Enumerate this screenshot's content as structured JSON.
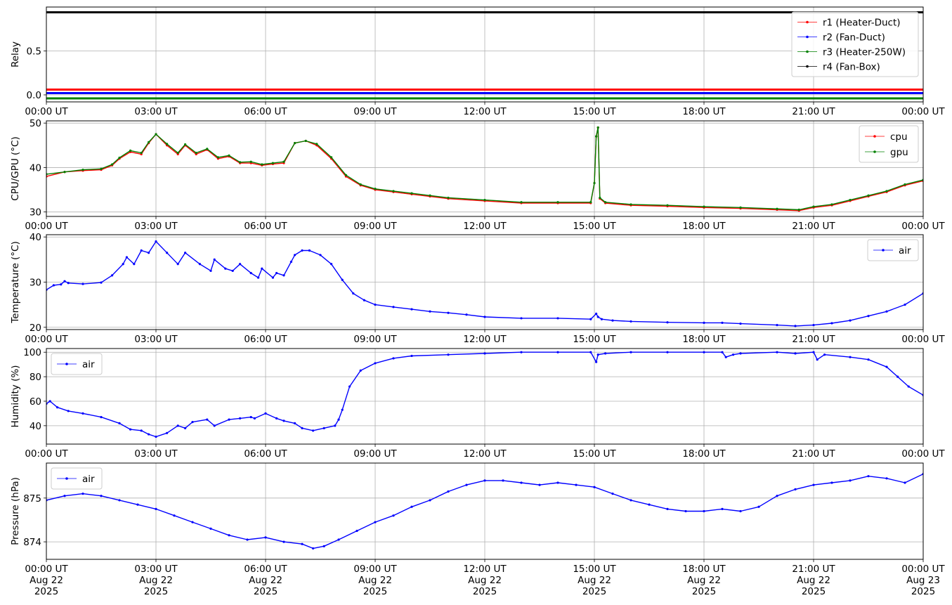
{
  "chart_data": [
    {
      "type": "line",
      "ylabel": "Relay",
      "ylim": [
        -0.08,
        1.0
      ],
      "yticks": [
        0.0,
        0.5
      ],
      "ytick_labels": [
        "0.0",
        "0.5"
      ],
      "xlim_hours": [
        0,
        24
      ],
      "xtick_labels": [
        "00:00 UT",
        "03:00 UT",
        "06:00 UT",
        "09:00 UT",
        "12:00 UT",
        "15:00 UT",
        "18:00 UT",
        "21:00 UT",
        "00:00 UT"
      ],
      "grid": true,
      "legend": "top-right",
      "series": [
        {
          "name": "r1 (Heater-Duct)",
          "color": "#ff0000",
          "x": [
            0,
            24
          ],
          "y": [
            0.06,
            0.06
          ]
        },
        {
          "name": "r2 (Fan-Duct)",
          "color": "#0000ff",
          "x": [
            0,
            24
          ],
          "y": [
            0.02,
            0.02
          ]
        },
        {
          "name": "r3 (Heater-250W)",
          "color": "#008000",
          "x": [
            0,
            24
          ],
          "y": [
            -0.04,
            -0.04
          ]
        },
        {
          "name": "r4 (Fan-Box)",
          "color": "#000000",
          "x": [
            0,
            24
          ],
          "y": [
            0.94,
            0.94
          ]
        }
      ]
    },
    {
      "type": "line",
      "ylabel": "CPU/GPU (°C)",
      "ylim": [
        29,
        50.5
      ],
      "yticks": [
        30,
        40,
        50
      ],
      "ytick_labels": [
        "30",
        "40",
        "50"
      ],
      "xlim_hours": [
        0,
        24
      ],
      "xtick_labels": [
        "00:00 UT",
        "03:00 UT",
        "06:00 UT",
        "09:00 UT",
        "12:00 UT",
        "15:00 UT",
        "18:00 UT",
        "21:00 UT",
        "00:00 UT"
      ],
      "grid": true,
      "legend": "top-right",
      "series": [
        {
          "name": "cpu",
          "color": "#ff0000",
          "x": [
            0,
            0.5,
            1.0,
            1.5,
            1.8,
            2.0,
            2.3,
            2.6,
            2.8,
            3.0,
            3.3,
            3.6,
            3.8,
            4.1,
            4.4,
            4.7,
            5.0,
            5.3,
            5.6,
            5.9,
            6.2,
            6.5,
            6.8,
            7.1,
            7.4,
            7.8,
            8.2,
            8.6,
            9.0,
            9.5,
            10.0,
            10.5,
            11.0,
            12.0,
            13.0,
            14.0,
            14.9,
            15.0,
            15.05,
            15.1,
            15.15,
            15.3,
            16.0,
            17.0,
            18.0,
            19.0,
            20.0,
            20.6,
            21.0,
            21.5,
            22.0,
            22.5,
            23.0,
            23.5,
            24.0
          ],
          "y": [
            38.0,
            39.0,
            39.3,
            39.5,
            40.5,
            42.0,
            43.5,
            43.0,
            45.5,
            47.5,
            45.0,
            43.0,
            45.0,
            43.0,
            44.0,
            42.0,
            42.5,
            41.0,
            41.0,
            40.5,
            40.8,
            41.0,
            45.5,
            46.0,
            45.0,
            42.0,
            38.0,
            36.0,
            35.0,
            34.5,
            34.0,
            33.5,
            33.0,
            32.5,
            32.0,
            32.0,
            32.0,
            36.5,
            47.0,
            49.0,
            33.0,
            32.0,
            31.5,
            31.3,
            31.0,
            30.8,
            30.5,
            30.3,
            31.0,
            31.5,
            32.5,
            33.5,
            34.5,
            36.0,
            37.0
          ]
        },
        {
          "name": "gpu",
          "color": "#008000",
          "x": [
            0,
            0.5,
            1.0,
            1.5,
            1.8,
            2.0,
            2.3,
            2.6,
            2.8,
            3.0,
            3.3,
            3.6,
            3.8,
            4.1,
            4.4,
            4.7,
            5.0,
            5.3,
            5.6,
            5.9,
            6.2,
            6.5,
            6.8,
            7.1,
            7.4,
            7.8,
            8.2,
            8.6,
            9.0,
            9.5,
            10.0,
            10.5,
            11.0,
            12.0,
            13.0,
            14.0,
            14.9,
            15.0,
            15.05,
            15.1,
            15.15,
            15.3,
            16.0,
            17.0,
            18.0,
            19.0,
            20.0,
            20.6,
            21.0,
            21.5,
            22.0,
            22.5,
            23.0,
            23.5,
            24.0
          ],
          "y": [
            38.5,
            39.0,
            39.5,
            39.7,
            40.7,
            42.2,
            43.8,
            43.3,
            45.7,
            47.5,
            45.3,
            43.3,
            45.2,
            43.3,
            44.2,
            42.3,
            42.7,
            41.2,
            41.3,
            40.7,
            41.0,
            41.3,
            45.5,
            46.0,
            45.3,
            42.3,
            38.3,
            36.2,
            35.2,
            34.7,
            34.2,
            33.7,
            33.2,
            32.7,
            32.2,
            32.2,
            32.2,
            36.5,
            47.0,
            49.0,
            33.2,
            32.2,
            31.7,
            31.5,
            31.2,
            31.0,
            30.7,
            30.5,
            31.2,
            31.7,
            32.7,
            33.7,
            34.7,
            36.2,
            37.2
          ]
        }
      ]
    },
    {
      "type": "line",
      "ylabel": "Temperature (°C)",
      "ylim": [
        19.5,
        40.5
      ],
      "yticks": [
        20,
        30,
        40
      ],
      "ytick_labels": [
        "20",
        "30",
        "40"
      ],
      "xlim_hours": [
        0,
        24
      ],
      "xtick_labels": [
        "00:00 UT",
        "03:00 UT",
        "06:00 UT",
        "09:00 UT",
        "12:00 UT",
        "15:00 UT",
        "18:00 UT",
        "21:00 UT",
        "00:00 UT"
      ],
      "grid": true,
      "legend": "top-right",
      "series": [
        {
          "name": "air",
          "color": "#0000ff",
          "x": [
            0,
            0.2,
            0.4,
            0.5,
            0.6,
            1.0,
            1.5,
            1.8,
            2.1,
            2.2,
            2.4,
            2.6,
            2.8,
            3.0,
            3.3,
            3.6,
            3.8,
            4.2,
            4.5,
            4.6,
            4.9,
            5.1,
            5.3,
            5.6,
            5.8,
            5.9,
            6.2,
            6.3,
            6.5,
            6.7,
            6.8,
            7.0,
            7.2,
            7.5,
            7.8,
            8.1,
            8.4,
            8.7,
            9.0,
            9.5,
            10.0,
            10.5,
            11.0,
            11.5,
            12.0,
            13.0,
            14.0,
            14.9,
            15.05,
            15.1,
            15.2,
            15.5,
            16.0,
            17.0,
            18.0,
            18.5,
            19.0,
            20.0,
            20.5,
            21.0,
            21.5,
            22.0,
            22.5,
            23.0,
            23.5,
            24.0
          ],
          "y": [
            28.3,
            29.3,
            29.5,
            30.2,
            29.8,
            29.6,
            29.9,
            31.5,
            34.0,
            35.5,
            34.0,
            37.0,
            36.5,
            39.0,
            36.5,
            34.0,
            36.5,
            34.0,
            32.5,
            35.0,
            33.0,
            32.5,
            34.0,
            32.0,
            31.0,
            33.0,
            31.0,
            32.0,
            31.5,
            34.5,
            36.0,
            37.0,
            37.0,
            36.0,
            34.0,
            30.5,
            27.5,
            26.0,
            25.0,
            24.5,
            24.0,
            23.5,
            23.2,
            22.8,
            22.3,
            22.0,
            22.0,
            21.8,
            23.0,
            22.3,
            21.8,
            21.5,
            21.3,
            21.1,
            21.0,
            21.0,
            20.8,
            20.5,
            20.3,
            20.5,
            20.9,
            21.5,
            22.5,
            23.5,
            25.0,
            27.5
          ]
        }
      ]
    },
    {
      "type": "line",
      "ylabel": "Humidity (%)",
      "ylim": [
        25,
        103
      ],
      "yticks": [
        40,
        60,
        80,
        100
      ],
      "ytick_labels": [
        "40",
        "60",
        "80",
        "100"
      ],
      "xlim_hours": [
        0,
        24
      ],
      "xtick_labels": [
        "00:00 UT",
        "03:00 UT",
        "06:00 UT",
        "09:00 UT",
        "12:00 UT",
        "15:00 UT",
        "18:00 UT",
        "21:00 UT",
        "00:00 UT"
      ],
      "grid": true,
      "legend": "top-left",
      "series": [
        {
          "name": "air",
          "color": "#0000ff",
          "x": [
            0,
            0.1,
            0.3,
            0.6,
            1.0,
            1.5,
            2.0,
            2.3,
            2.6,
            2.8,
            3.0,
            3.3,
            3.6,
            3.8,
            4.0,
            4.4,
            4.6,
            5.0,
            5.3,
            5.6,
            5.7,
            6.0,
            6.3,
            6.5,
            6.8,
            7.0,
            7.3,
            7.6,
            7.9,
            8.0,
            8.1,
            8.3,
            8.6,
            9.0,
            9.5,
            10.0,
            11.0,
            12.0,
            13.0,
            14.0,
            14.9,
            15.05,
            15.1,
            15.3,
            16.0,
            17.0,
            18.0,
            18.5,
            18.6,
            18.8,
            19.0,
            20.0,
            20.5,
            21.0,
            21.1,
            21.3,
            22.0,
            22.5,
            23.0,
            23.3,
            23.6,
            24.0
          ],
          "y": [
            58,
            60,
            55,
            52,
            50,
            47,
            42,
            37,
            36,
            33,
            31,
            34,
            40,
            38,
            43,
            45,
            40,
            45,
            46,
            47,
            46,
            50,
            46,
            44,
            42,
            38,
            36,
            38,
            40,
            45,
            53,
            72,
            85,
            91,
            95,
            97,
            98,
            99,
            100,
            100,
            100,
            92,
            98,
            99,
            100,
            100,
            100,
            100,
            96,
            98,
            99,
            100,
            99,
            100,
            94,
            98,
            96,
            94,
            88,
            80,
            72,
            65
          ]
        }
      ]
    },
    {
      "type": "line",
      "ylabel": "Pressure (hPa)",
      "ylim": [
        873.6,
        875.8
      ],
      "yticks": [
        874,
        875
      ],
      "ytick_labels": [
        "874",
        "875"
      ],
      "xlim_hours": [
        0,
        24
      ],
      "xtick_labels": [
        "00:00 UT\nAug 22\n2025",
        "03:00 UT\nAug 22\n2025",
        "06:00 UT\nAug 22\n2025",
        "09:00 UT\nAug 22\n2025",
        "12:00 UT\nAug 22\n2025",
        "15:00 UT\nAug 22\n2025",
        "18:00 UT\nAug 22\n2025",
        "21:00 UT\nAug 22\n2025",
        "00:00 UT\nAug 23\n2025"
      ],
      "grid": true,
      "legend": "top-left",
      "series": [
        {
          "name": "air",
          "color": "#0000ff",
          "x": [
            0,
            0.5,
            1.0,
            1.5,
            2.0,
            2.5,
            3.0,
            3.5,
            4.0,
            4.5,
            5.0,
            5.5,
            6.0,
            6.5,
            7.0,
            7.3,
            7.6,
            8.0,
            8.5,
            9.0,
            9.5,
            10.0,
            10.5,
            11.0,
            11.5,
            12.0,
            12.5,
            13.0,
            13.5,
            14.0,
            14.5,
            15.0,
            15.5,
            16.0,
            16.5,
            17.0,
            17.5,
            18.0,
            18.5,
            19.0,
            19.5,
            20.0,
            20.5,
            21.0,
            21.5,
            22.0,
            22.5,
            23.0,
            23.5,
            24.0
          ],
          "y": [
            874.95,
            875.05,
            875.1,
            875.05,
            874.95,
            874.85,
            874.75,
            874.6,
            874.45,
            874.3,
            874.15,
            874.05,
            874.1,
            874.0,
            873.95,
            873.85,
            873.9,
            874.05,
            874.25,
            874.45,
            874.6,
            874.8,
            874.95,
            875.15,
            875.3,
            875.4,
            875.4,
            875.35,
            875.3,
            875.35,
            875.3,
            875.25,
            875.1,
            874.95,
            874.85,
            874.75,
            874.7,
            874.7,
            874.75,
            874.7,
            874.8,
            875.05,
            875.2,
            875.3,
            875.35,
            875.4,
            875.5,
            875.45,
            875.35,
            875.55
          ]
        }
      ]
    }
  ]
}
